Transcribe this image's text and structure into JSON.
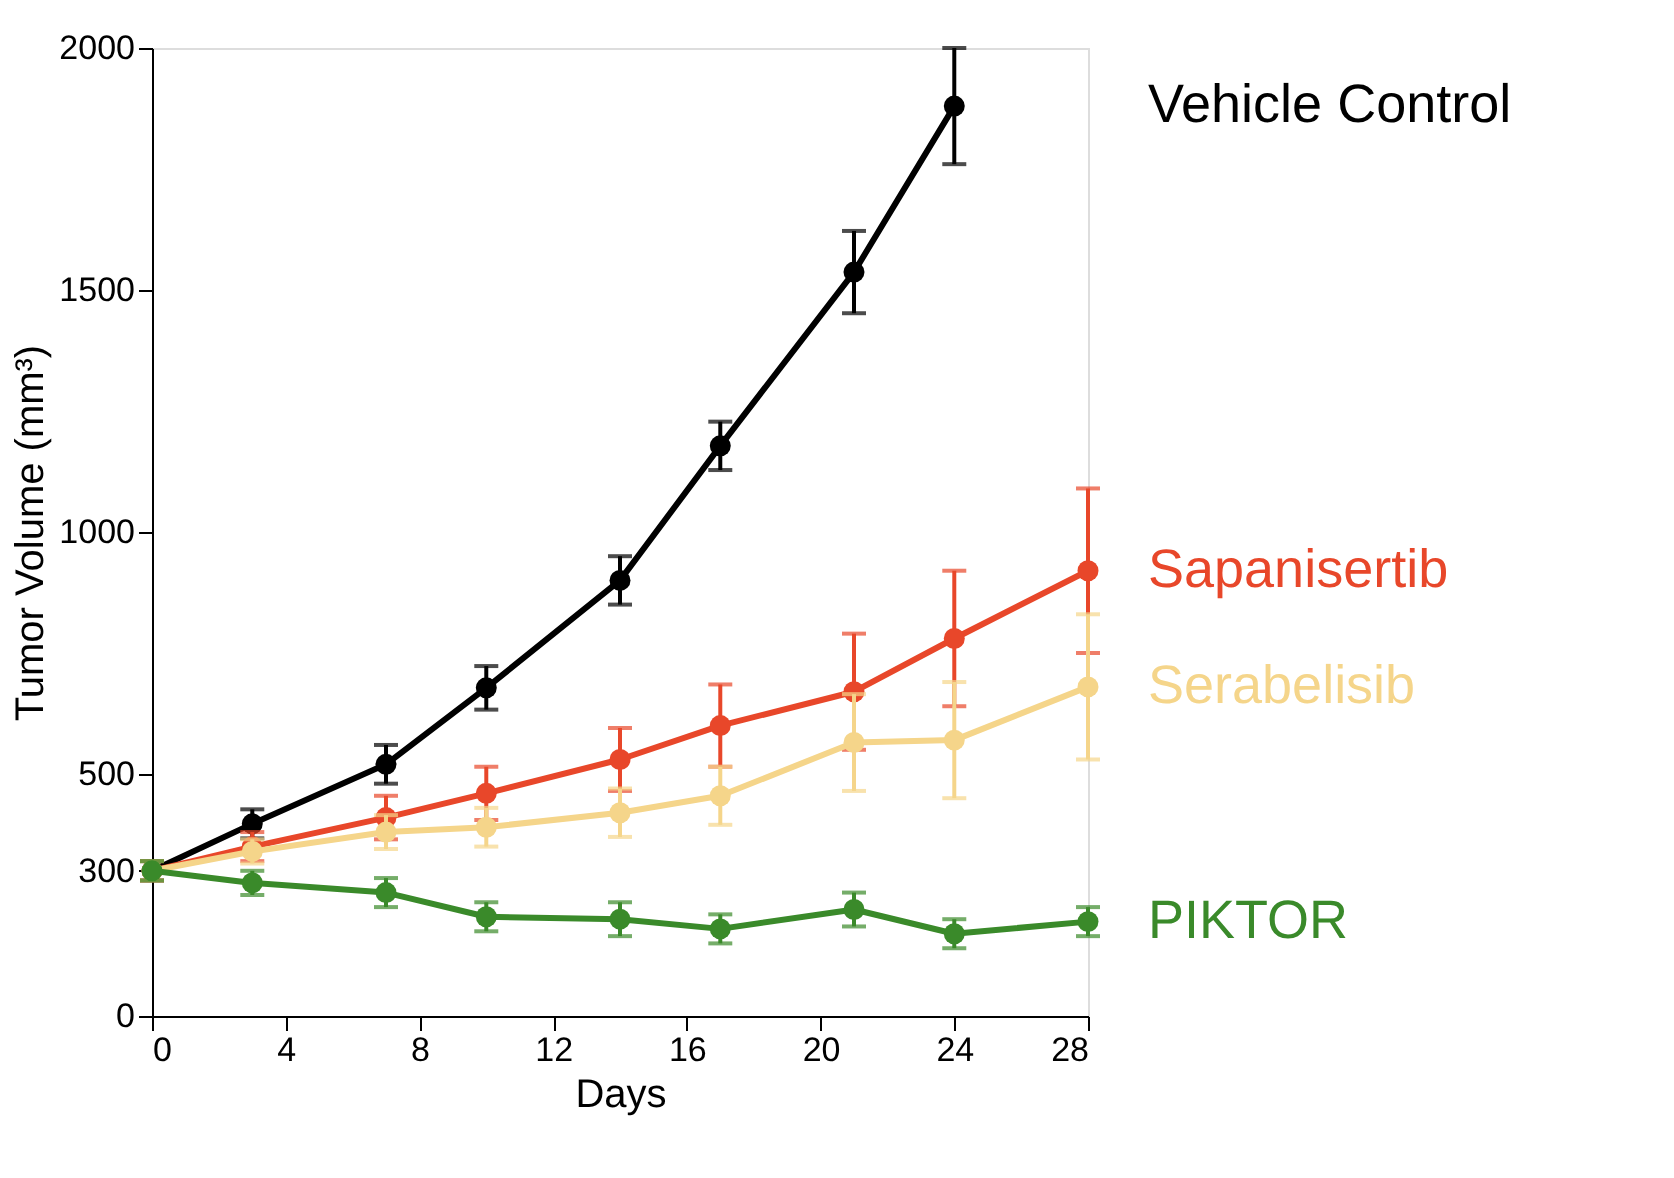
{
  "chart_data": {
    "type": "line",
    "xlabel": "Days",
    "ylabel": "Tumor Volume (mm³)",
    "x": [
      0,
      3,
      7,
      10,
      14,
      17,
      21,
      24,
      28
    ],
    "series": [
      {
        "name": "Vehicle Control",
        "color": "#000000",
        "values": [
          300,
          397,
          520,
          678,
          900,
          1178,
          1537,
          1880,
          null
        ],
        "errors": [
          20,
          30,
          40,
          45,
          50,
          50,
          85,
          120,
          null
        ]
      },
      {
        "name": "Sapanisertib",
        "color": "#e8472a",
        "values": [
          300,
          350,
          410,
          460,
          530,
          600,
          670,
          780,
          920
        ],
        "errors": [
          20,
          30,
          45,
          55,
          65,
          85,
          120,
          140,
          170
        ]
      },
      {
        "name": "Serabelisib",
        "color": "#f5d58a",
        "values": [
          300,
          340,
          380,
          390,
          420,
          455,
          565,
          570,
          680
        ],
        "errors": [
          20,
          25,
          35,
          40,
          50,
          60,
          100,
          120,
          150
        ]
      },
      {
        "name": "PIKTOR",
        "color": "#3a8a2a",
        "values": [
          300,
          275,
          255,
          205,
          200,
          180,
          220,
          170,
          195
        ],
        "errors": [
          20,
          25,
          30,
          30,
          35,
          30,
          35,
          30,
          30
        ]
      }
    ],
    "xlim": [
      0,
      28
    ],
    "xticks": [
      0,
      4,
      8,
      12,
      16,
      20,
      24,
      28
    ],
    "ylim": [
      0,
      2000
    ],
    "yticks": [
      0,
      300,
      500,
      1000,
      1500,
      2000
    ],
    "grid": false,
    "marker": "circle",
    "line_style": "solid"
  }
}
